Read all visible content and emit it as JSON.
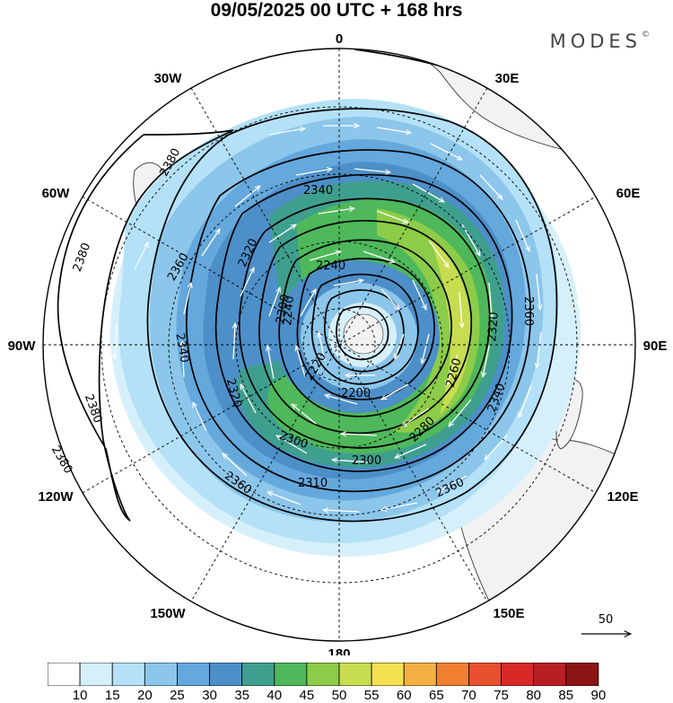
{
  "title": "09/05/2025  00 UTC  + 168 hrs",
  "brand": "MODES",
  "brand_mark": "©",
  "longitude_labels": {
    "lon_0": "0",
    "lon_30e": "30E",
    "lon_60e": "60E",
    "lon_90e": "90E",
    "lon_120e": "120E",
    "lon_150e": "150E",
    "lon_180": "180",
    "lon_150w": "150W",
    "lon_120w": "120W",
    "lon_90w": "90W",
    "lon_60w": "60W",
    "lon_30w": "30W"
  },
  "contour_labels": [
    "2380",
    "2380",
    "2380",
    "2360",
    "2360",
    "2360",
    "2360",
    "2340",
    "2340",
    "2340",
    "2320",
    "2320",
    "2320",
    "2300",
    "2300",
    "2310",
    "2300",
    "2280",
    "2260",
    "2240",
    "2240",
    "2220",
    "2200"
  ],
  "reference_vector": {
    "label": "50"
  },
  "colorbar": {
    "labels": [
      "10",
      "15",
      "20",
      "25",
      "30",
      "35",
      "40",
      "45",
      "50",
      "55",
      "60",
      "65",
      "70",
      "75",
      "80",
      "85",
      "90"
    ],
    "colors": [
      "#ffffff",
      "#d6f0fb",
      "#b4e1f7",
      "#8cc6ea",
      "#64a8dc",
      "#4d8fc8",
      "#3f9f8e",
      "#4eb85a",
      "#8ccc48",
      "#c8dc50",
      "#f4e050",
      "#f4b040",
      "#f08030",
      "#e85030",
      "#d82828",
      "#b81e24",
      "#8c1414"
    ]
  },
  "colors": {
    "land": "#f2f2f2",
    "shade_10_15": "#d6f0fb",
    "shade_15_20": "#b4e1f7",
    "shade_20_25": "#8cc6ea",
    "shade_25_30": "#64a8dc",
    "shade_30_35": "#4d8fc8",
    "shade_35_40": "#3f9f8e",
    "shade_40_45": "#4eb85a",
    "shade_45_50": "#8ccc48",
    "shade_50_55": "#c8dc50"
  }
}
